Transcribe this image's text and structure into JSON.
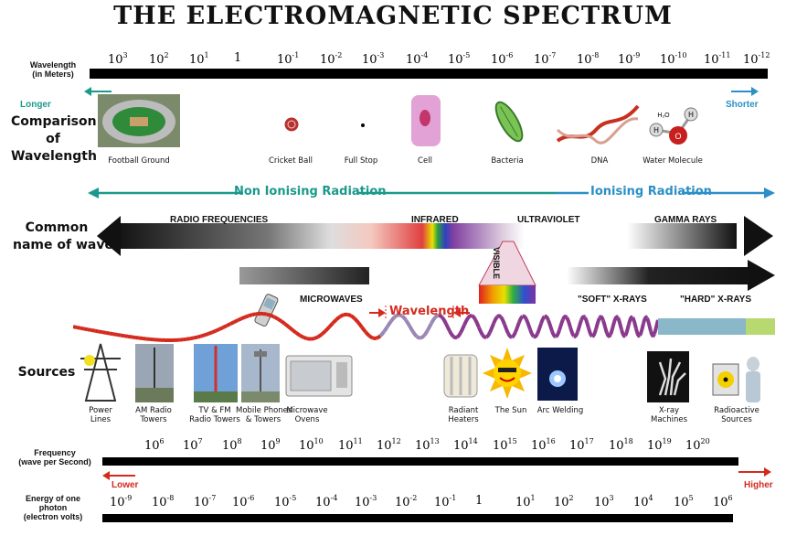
{
  "title": "THE ELECTROMAGNETIC SPECTRUM",
  "wavelength_label": [
    "Wavelength",
    "(in Meters)"
  ],
  "wavelength_ticks": [
    {
      "base": "10",
      "exp": "3"
    },
    {
      "base": "10",
      "exp": "2"
    },
    {
      "base": "10",
      "exp": "1"
    },
    {
      "base": "1",
      "exp": ""
    },
    {
      "base": "10",
      "exp": "-1"
    },
    {
      "base": "10",
      "exp": "-2"
    },
    {
      "base": "10",
      "exp": "-3"
    },
    {
      "base": "10",
      "exp": "-4"
    },
    {
      "base": "10",
      "exp": "-5"
    },
    {
      "base": "10",
      "exp": "-6"
    },
    {
      "base": "10",
      "exp": "-7"
    },
    {
      "base": "10",
      "exp": "-8"
    },
    {
      "base": "10",
      "exp": "-9"
    },
    {
      "base": "10",
      "exp": "-10"
    },
    {
      "base": "10",
      "exp": "-11"
    },
    {
      "base": "10",
      "exp": "-12"
    }
  ],
  "longer_label": "Longer",
  "shorter_label": "Shorter",
  "comparison_label": [
    "Comparison",
    "of",
    "Wavelength"
  ],
  "comparison_items": [
    "Football Ground",
    "Cricket Ball",
    "Full Stop",
    "Cell",
    "Bacteria",
    "DNA",
    "Water Molecule"
  ],
  "water_atoms": {
    "h1": "H",
    "h2": "H",
    "o": "O",
    "h2o": "H₂O"
  },
  "non_ionising": "Non Ionising Radiation",
  "ionising": "Ionising Radiation",
  "common_name_label": [
    "Common",
    "name of wave"
  ],
  "wave_names": {
    "radio": "RADIO FREQUENCIES",
    "infrared": "INFRARED",
    "ultraviolet": "ULTRAVIOLET",
    "gamma": "GAMMA RAYS",
    "visible": "VISIBLE",
    "microwaves": "MICROWAVES",
    "soft_xrays": "\"SOFT\" X-RAYS",
    "hard_xrays": "\"HARD\" X-RAYS",
    "wavelength": "Wavelength"
  },
  "sources_label": "Sources",
  "sources": [
    [
      "Power",
      "Lines"
    ],
    [
      "AM Radio",
      "Towers"
    ],
    [
      "TV & FM",
      "Radio Towers"
    ],
    [
      "Mobile Phones",
      "& Towers"
    ],
    [
      "Microwave",
      "Ovens"
    ],
    [
      "Radiant",
      "Heaters"
    ],
    [
      "The Sun",
      ""
    ],
    [
      "Arc Welding",
      ""
    ],
    [
      "X-ray",
      "Machines"
    ],
    [
      "Radioactive",
      "Sources"
    ]
  ],
  "frequency_label": [
    "Frequency",
    "(wave per Second)"
  ],
  "frequency_ticks": [
    "6",
    "7",
    "8",
    "9",
    "10",
    "11",
    "12",
    "13",
    "14",
    "15",
    "16",
    "17",
    "18",
    "19",
    "20"
  ],
  "lower_label": "Lower",
  "higher_label": "Higher",
  "energy_label": [
    "Energy of one",
    "photon",
    "(electron volts)"
  ],
  "energy_ticks": [
    {
      "base": "10",
      "exp": "-9"
    },
    {
      "base": "10",
      "exp": "-8"
    },
    {
      "base": "10",
      "exp": "-7"
    },
    {
      "base": "10",
      "exp": "-6"
    },
    {
      "base": "10",
      "exp": "-5"
    },
    {
      "base": "10",
      "exp": "-4"
    },
    {
      "base": "10",
      "exp": "-3"
    },
    {
      "base": "10",
      "exp": "-2"
    },
    {
      "base": "10",
      "exp": "-1"
    },
    {
      "base": "1",
      "exp": ""
    },
    {
      "base": "10",
      "exp": "1"
    },
    {
      "base": "10",
      "exp": "2"
    },
    {
      "base": "10",
      "exp": "3"
    },
    {
      "base": "10",
      "exp": "4"
    },
    {
      "base": "10",
      "exp": "5"
    },
    {
      "base": "10",
      "exp": "6"
    }
  ],
  "colors": {
    "teal": "#1a9a8c",
    "blue": "#2c8fc6",
    "red": "#d42a1e",
    "wave_red": "#d42a1e",
    "wave_purple": "#8a3a8c"
  }
}
